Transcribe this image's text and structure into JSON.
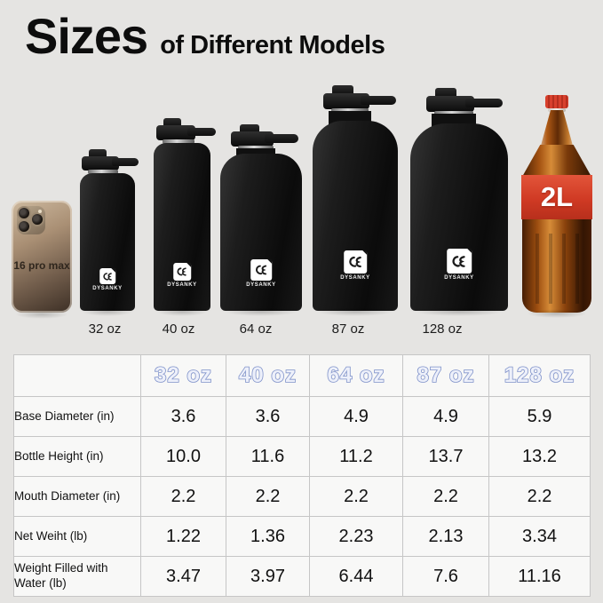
{
  "title": {
    "main": "Sizes",
    "sub": "of Different Models"
  },
  "lineup": {
    "phone_label": "16 pro max",
    "brand": "DYSANKY",
    "cola_size_label": "2L",
    "captions": [
      "32 oz",
      "40 oz",
      "64 oz",
      "87 oz",
      "128 oz"
    ]
  },
  "table": {
    "columns": [
      "32 oz",
      "40 oz",
      "64 oz",
      "87 oz",
      "128 oz"
    ],
    "rows": [
      {
        "label": "Base Diameter (in)",
        "values": [
          "3.6",
          "3.6",
          "4.9",
          "4.9",
          "5.9"
        ]
      },
      {
        "label": "Bottle Height (in)",
        "values": [
          "10.0",
          "11.6",
          "11.2",
          "13.7",
          "13.2"
        ]
      },
      {
        "label": "Mouth Diameter (in)",
        "values": [
          "2.2",
          "2.2",
          "2.2",
          "2.2",
          "2.2"
        ]
      },
      {
        "label": "Net Weiht (lb)",
        "values": [
          "1.22",
          "1.36",
          "2.23",
          "2.13",
          "3.34"
        ]
      },
      {
        "label": "Weight Filled with Water (lb)",
        "values": [
          "3.47",
          "3.97",
          "6.44",
          "7.6",
          "11.16"
        ]
      }
    ]
  },
  "colors": {
    "background": "#e5e4e2",
    "header_fill": "#edf0fa",
    "header_outline": "#8093ca",
    "cola_red": "#d03a24",
    "bottle_black": "#111111"
  }
}
